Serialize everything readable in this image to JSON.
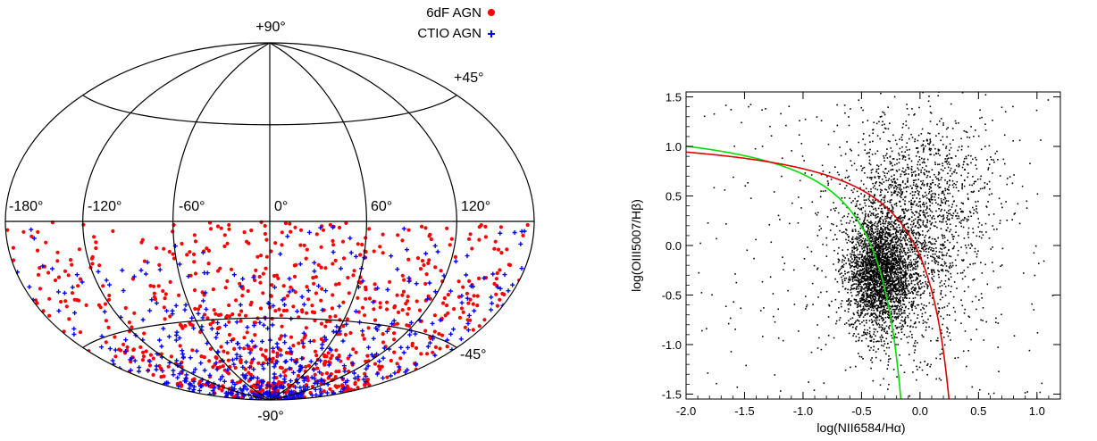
{
  "chart_data": [
    {
      "type": "scatter",
      "projection": "hammer-aitoff",
      "title": "",
      "lat_labels": [
        "+90°",
        "+45°",
        "-45°",
        "-90°"
      ],
      "lon_labels": [
        "-180°",
        "-120°",
        "-60°",
        "0°",
        "60°",
        "120°"
      ],
      "lat_grid": [
        -45,
        0,
        45
      ],
      "lon_grid": [
        -120,
        -60,
        0,
        60,
        120
      ],
      "legend_position": "top-right",
      "series": [
        {
          "name": "6dF AGN",
          "marker": "circle",
          "color": "#ff0000"
        },
        {
          "name": "CTIO AGN",
          "marker": "plus",
          "color": "#0000ff"
        }
      ],
      "coverage": "southern hemisphere only (latitude 0° to -90°)"
    },
    {
      "type": "scatter",
      "xlabel": "log(NII6584/Hα)",
      "ylabel": "log(OIII5007/Hβ)",
      "xlim": [
        -2.0,
        1.2
      ],
      "ylim": [
        -1.55,
        1.55
      ],
      "xticks": [
        "-2.0",
        "-1.5",
        "-1.0",
        "-0.5",
        "0.0",
        "0.5",
        "1.0"
      ],
      "yticks": [
        "-1.5",
        "-1.0",
        "-0.5",
        "0.0",
        "0.5",
        "1.0",
        "1.5"
      ],
      "points_color": "#000000",
      "cluster_center": [
        -0.35,
        -0.3
      ],
      "curves": [
        {
          "color": "#00dd00",
          "formula": "0.61/(x-0.05)+1.3",
          "x_max": 0.05
        },
        {
          "color": "#dd0000",
          "formula": "0.61/(x-0.47)+1.19",
          "x_max": 0.47
        }
      ]
    }
  ]
}
